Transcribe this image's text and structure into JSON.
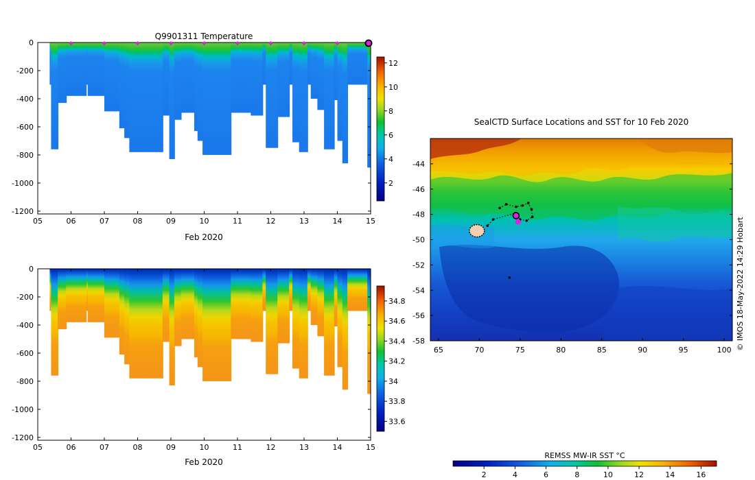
{
  "chart_data": [
    {
      "type": "heatmap",
      "title": "Q9901311  Temperature",
      "xlabel": "Feb 2020",
      "ylabel": "",
      "x_ticks": [
        "05",
        "06",
        "07",
        "08",
        "09",
        "10",
        "11",
        "12",
        "13",
        "14",
        "15"
      ],
      "y_ticks": [
        0,
        -200,
        -400,
        -600,
        -800,
        -1000,
        -1200
      ],
      "xlim": [
        5,
        15
      ],
      "ylim": [
        -1220,
        0
      ],
      "colorbar": {
        "ticks": [
          2,
          4,
          6,
          8,
          10,
          12
        ],
        "range": [
          0.5,
          12.5
        ]
      },
      "surface_markers_day": [
        6,
        7,
        8,
        9,
        10,
        11,
        12,
        13,
        14
      ],
      "current_marker_day": 15,
      "profile_max_depths": [
        [
          5.4,
          760
        ],
        [
          5.6,
          430
        ],
        [
          5.85,
          380
        ],
        [
          6.5,
          380
        ],
        [
          7.0,
          490
        ],
        [
          7.45,
          610
        ],
        [
          7.6,
          680
        ],
        [
          7.75,
          780
        ],
        [
          8.2,
          780
        ],
        [
          8.75,
          520
        ],
        [
          8.95,
          830
        ],
        [
          9.1,
          550
        ],
        [
          9.3,
          500
        ],
        [
          9.7,
          630
        ],
        [
          9.8,
          700
        ],
        [
          9.95,
          800
        ],
        [
          10.2,
          800
        ],
        [
          10.8,
          500
        ],
        [
          11.4,
          520
        ],
        [
          11.75,
          300
        ],
        [
          11.85,
          750
        ],
        [
          12.2,
          530
        ],
        [
          12.55,
          300
        ],
        [
          12.65,
          710
        ],
        [
          12.85,
          780
        ],
        [
          13.1,
          300
        ],
        [
          13.2,
          400
        ],
        [
          13.4,
          480
        ],
        [
          13.6,
          760
        ],
        [
          13.9,
          410
        ],
        [
          14.0,
          700
        ],
        [
          14.15,
          860
        ],
        [
          14.3,
          300
        ],
        [
          14.9,
          890
        ],
        [
          15.0,
          830
        ]
      ]
    },
    {
      "type": "heatmap",
      "title": "",
      "xlabel": "Feb 2020",
      "ylabel": "",
      "x_ticks": [
        "05",
        "06",
        "07",
        "08",
        "09",
        "10",
        "11",
        "12",
        "13",
        "14",
        "15"
      ],
      "y_ticks": [
        0,
        -200,
        -400,
        -600,
        -800,
        -1000,
        -1200
      ],
      "xlim": [
        5,
        15
      ],
      "ylim": [
        -1220,
        0
      ],
      "colorbar": {
        "ticks": [
          33.6,
          33.8,
          34,
          34.2,
          34.4,
          34.6,
          34.8
        ],
        "range": [
          33.5,
          34.95
        ]
      }
    },
    {
      "type": "heatmap",
      "title": "SealCTD Surface Locations and SST for 10 Feb 2020",
      "xlabel": "",
      "ylabel": "",
      "x_ticks": [
        65,
        70,
        75,
        80,
        85,
        90,
        95,
        100
      ],
      "y_ticks": [
        -44,
        -46,
        -48,
        -50,
        -52,
        -54,
        -56,
        -58
      ],
      "xlim": [
        64,
        101
      ],
      "ylim": [
        -58,
        -42
      ],
      "colorbar": {
        "label": "REMSS MW-IR SST °C",
        "ticks": [
          2,
          4,
          6,
          8,
          10,
          12,
          14,
          16
        ],
        "range": [
          0,
          17
        ]
      },
      "seal_locations": [
        [
          72.5,
          -47.5
        ],
        [
          73.3,
          -47.2
        ],
        [
          74.5,
          -47.4
        ],
        [
          75.3,
          -47.3
        ],
        [
          76.0,
          -47.1
        ],
        [
          76.4,
          -47.6
        ],
        [
          76.5,
          -48.2
        ],
        [
          75.8,
          -48.5
        ],
        [
          75.0,
          -48.4
        ],
        [
          74.4,
          -47.9
        ],
        [
          71.7,
          -48.4
        ],
        [
          71.0,
          -48.9
        ],
        [
          73.7,
          -53.0
        ]
      ],
      "seal_cluster_lon_lat": [
        69.7,
        -49.3
      ],
      "current_position": [
        74.5,
        -48.1
      ],
      "watermark": "© IMOS 18-May-2022 14:29 Hobart"
    }
  ]
}
